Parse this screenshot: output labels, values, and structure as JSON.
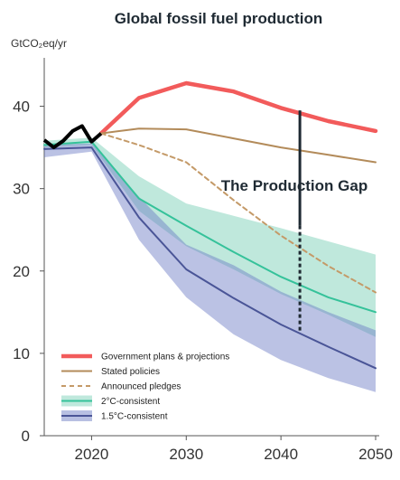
{
  "chart_data": {
    "type": "line",
    "title": "Global fossil fuel production",
    "ylabel": "GtCO₂eq/yr",
    "xlabel": "",
    "xlim": [
      2015,
      2050
    ],
    "ylim": [
      0,
      45
    ],
    "x_ticks": [
      2020,
      2030,
      2040,
      2050
    ],
    "y_ticks": [
      0,
      10,
      20,
      30,
      40
    ],
    "x_tick_labels": [
      "2020",
      "2030",
      "2040",
      "2050"
    ],
    "y_tick_labels": [
      "0",
      "10",
      "20",
      "30",
      "40"
    ],
    "grid": false,
    "historical": {
      "color": "#000000",
      "points": [
        [
          2015,
          35.9
        ],
        [
          2016,
          35.0
        ],
        [
          2017,
          35.8
        ],
        [
          2018,
          37.0
        ],
        [
          2019,
          37.6
        ],
        [
          2020,
          35.7
        ],
        [
          2021,
          36.7
        ]
      ]
    },
    "series": [
      {
        "name": "Government plans & projections",
        "style": "thick-line",
        "color": "#f25b5b",
        "points": [
          [
            2021,
            36.7
          ],
          [
            2025,
            41.0
          ],
          [
            2030,
            42.8
          ],
          [
            2035,
            41.8
          ],
          [
            2040,
            39.8
          ],
          [
            2045,
            38.2
          ],
          [
            2050,
            37.0
          ]
        ]
      },
      {
        "name": "Stated policies",
        "style": "line",
        "color": "#b38b5a",
        "points": [
          [
            2021,
            36.7
          ],
          [
            2025,
            37.3
          ],
          [
            2030,
            37.2
          ],
          [
            2035,
            36.1
          ],
          [
            2040,
            35.0
          ],
          [
            2045,
            34.1
          ],
          [
            2050,
            33.2
          ]
        ]
      },
      {
        "name": "Announced pledges",
        "style": "dashed",
        "color": "#c49a68",
        "points": [
          [
            2021,
            36.7
          ],
          [
            2025,
            35.3
          ],
          [
            2030,
            33.2
          ],
          [
            2035,
            28.6
          ],
          [
            2040,
            24.3
          ],
          [
            2045,
            20.6
          ],
          [
            2050,
            17.4
          ]
        ]
      },
      {
        "name": "2°C-consistent",
        "style": "line-with-band",
        "color": "#35c29a",
        "band_color": "#bfe8dc",
        "points": [
          [
            2015,
            35.3
          ],
          [
            2020,
            35.7
          ],
          [
            2025,
            28.8
          ],
          [
            2030,
            25.5
          ],
          [
            2035,
            22.3
          ],
          [
            2040,
            19.3
          ],
          [
            2045,
            16.8
          ],
          [
            2050,
            15.0
          ]
        ],
        "band_upper": [
          [
            2015,
            35.8
          ],
          [
            2020,
            36.2
          ],
          [
            2025,
            31.5
          ],
          [
            2030,
            28.2
          ],
          [
            2035,
            26.7
          ],
          [
            2040,
            25.2
          ],
          [
            2045,
            23.6
          ],
          [
            2050,
            22.0
          ]
        ],
        "band_lower": [
          [
            2015,
            35.0
          ],
          [
            2020,
            35.3
          ],
          [
            2025,
            27.3
          ],
          [
            2030,
            23.0
          ],
          [
            2035,
            20.2
          ],
          [
            2040,
            17.2
          ],
          [
            2045,
            14.7
          ],
          [
            2050,
            12.0
          ]
        ]
      },
      {
        "name": "1.5°C-consistent",
        "style": "line-with-band",
        "color": "#4a5597",
        "band_color": "#b8c0e2",
        "points": [
          [
            2015,
            34.8
          ],
          [
            2020,
            35.0
          ],
          [
            2025,
            26.5
          ],
          [
            2030,
            20.2
          ],
          [
            2035,
            16.7
          ],
          [
            2040,
            13.5
          ],
          [
            2045,
            10.8
          ],
          [
            2050,
            8.2
          ]
        ],
        "band_upper": [
          [
            2015,
            35.3
          ],
          [
            2020,
            35.5
          ],
          [
            2025,
            29.0
          ],
          [
            2030,
            23.2
          ],
          [
            2035,
            20.7
          ],
          [
            2040,
            17.5
          ],
          [
            2045,
            15.0
          ],
          [
            2050,
            12.8
          ]
        ],
        "band_lower": [
          [
            2015,
            33.8
          ],
          [
            2020,
            34.5
          ],
          [
            2025,
            23.8
          ],
          [
            2030,
            16.8
          ],
          [
            2035,
            12.3
          ],
          [
            2040,
            9.2
          ],
          [
            2045,
            7.0
          ],
          [
            2050,
            5.3
          ]
        ]
      }
    ],
    "annotations": [
      {
        "text": "The Production Gap",
        "x": 2042,
        "y_top": 39.5,
        "y_bottom": 12.7
      }
    ],
    "legend": {
      "position": "bottom-left",
      "entries": [
        {
          "label": "Government plans & projections",
          "series": 0
        },
        {
          "label": "Stated policies",
          "series": 1
        },
        {
          "label": "Announced pledges",
          "series": 2
        },
        {
          "label": "2°C-consistent",
          "series": 3
        },
        {
          "label": "1.5°C-consistent",
          "series": 4
        }
      ]
    }
  }
}
